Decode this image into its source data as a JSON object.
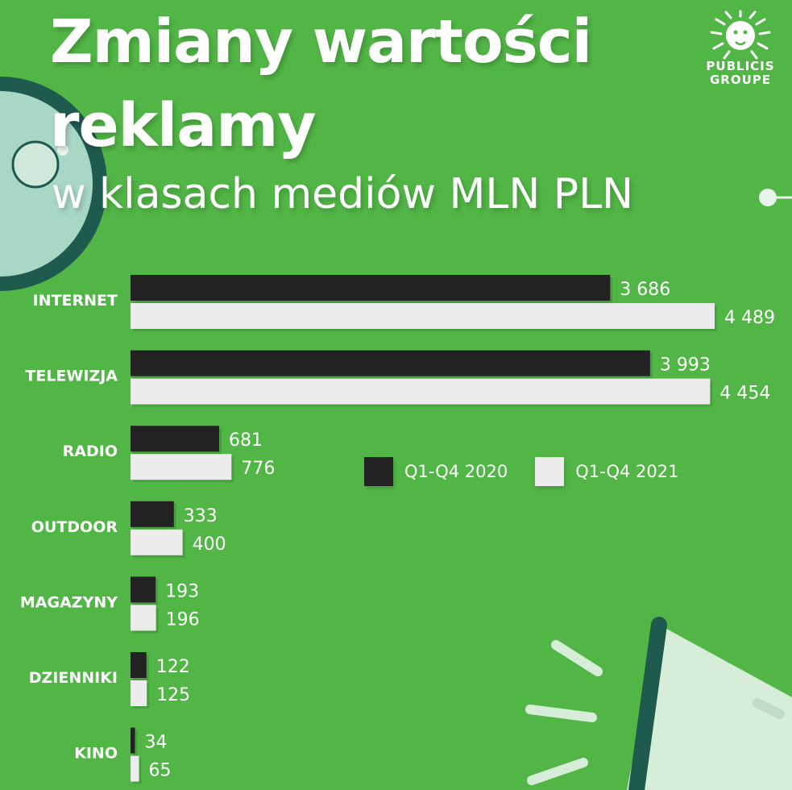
{
  "title_line1": "Zmiany wartości",
  "title_line2": "reklamy",
  "subtitle": "w klasach mediów MLN PLN",
  "logo": {
    "line1": "PUBLICIS",
    "line2": "GROUPE",
    "icon": "lion-head-icon"
  },
  "colors": {
    "background": "#52b646",
    "series_2020": "#222222",
    "series_2021": "#ececec"
  },
  "chart_data": {
    "type": "bar",
    "orientation": "horizontal",
    "categories": [
      "INTERNET",
      "TELEWIZJA",
      "RADIO",
      "OUTDOOR",
      "MAGAZYNY",
      "DZIENNIKI",
      "KINO"
    ],
    "series": [
      {
        "name": "Q1-Q4 2020",
        "values": [
          3686,
          3993,
          681,
          333,
          193,
          122,
          34
        ],
        "labels": [
          "3 686",
          "3 993",
          "681",
          "333",
          "193",
          "122",
          "34"
        ]
      },
      {
        "name": "Q1-Q4 2021",
        "values": [
          4489,
          4454,
          776,
          400,
          196,
          125,
          65
        ],
        "labels": [
          "4 489",
          "4 454",
          "776",
          "400",
          "196",
          "125",
          "65"
        ]
      }
    ],
    "title": "Zmiany wartości reklamy",
    "subtitle": "w klasach mediów MLN PLN",
    "xlim": [
      0,
      4489
    ],
    "grid": false,
    "legend_position": "center-right"
  }
}
